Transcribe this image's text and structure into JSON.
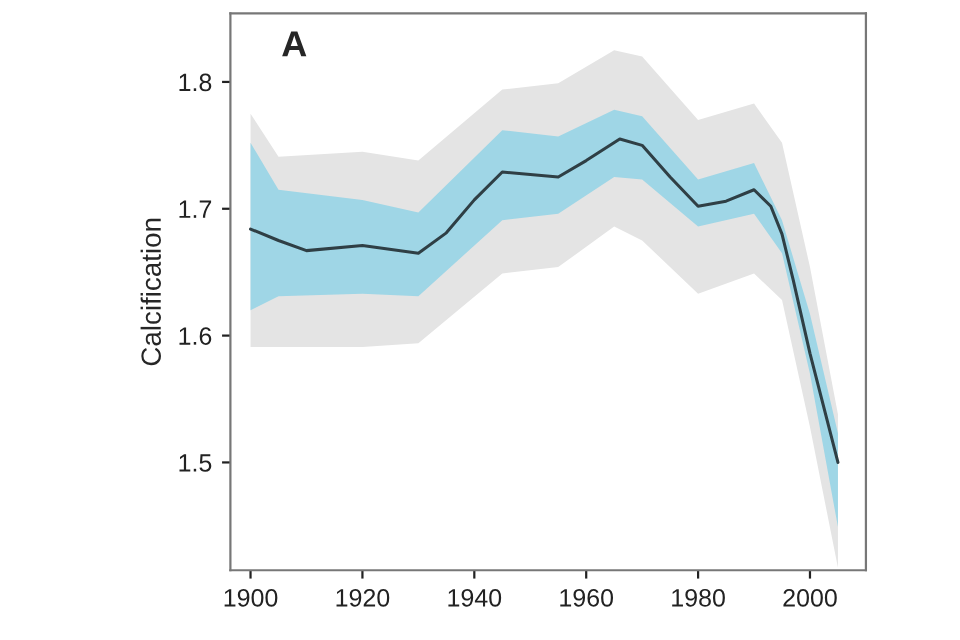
{
  "chart_data": {
    "type": "line",
    "title": "A",
    "ylabel": "Calcification",
    "x": [
      1900,
      1905,
      1910,
      1920,
      1930,
      1935,
      1940,
      1945,
      1950,
      1955,
      1960,
      1966,
      1970,
      1975,
      1980,
      1985,
      1990,
      1993,
      1995,
      1997,
      2000,
      2005
    ],
    "series": [
      {
        "type": "area",
        "color": "#e4e4e4",
        "x": [
          1900,
          1905,
          1920,
          1930,
          1945,
          1955,
          1965,
          1970,
          1980,
          1990,
          1995,
          2000,
          2005
        ],
        "values": [
          null,
          null,
          null,
          null,
          null,
          null,
          null,
          null,
          null,
          null,
          null,
          null,
          null
        ],
        "lower": [
          1.591,
          1.591,
          1.591,
          1.594,
          1.649,
          1.654,
          1.686,
          1.675,
          1.633,
          1.649,
          1.628,
          1.528,
          1.417
        ],
        "upper": [
          1.775,
          1.741,
          1.745,
          1.738,
          1.794,
          1.799,
          1.825,
          1.82,
          1.77,
          1.783,
          1.752,
          1.654,
          1.538
        ]
      },
      {
        "type": "area",
        "color": "#9fd6e6",
        "x": [
          1900,
          1905,
          1920,
          1930,
          1945,
          1955,
          1965,
          1970,
          1980,
          1990,
          1995,
          2000,
          2005
        ],
        "values": [
          null,
          null,
          null,
          null,
          null,
          null,
          null,
          null,
          null,
          null,
          null,
          null,
          null
        ],
        "lower": [
          1.62,
          1.631,
          1.633,
          1.631,
          1.691,
          1.696,
          1.725,
          1.723,
          1.686,
          1.696,
          1.665,
          1.57,
          1.449
        ],
        "upper": [
          1.752,
          1.715,
          1.707,
          1.697,
          1.762,
          1.757,
          1.778,
          1.773,
          1.723,
          1.736,
          1.691,
          1.617,
          1.523
        ]
      },
      {
        "type": "line",
        "color": "#2f3f45",
        "values": [
          1.684,
          1.675,
          1.667,
          1.671,
          1.665,
          1.681,
          1.707,
          1.729,
          1.727,
          1.725,
          1.738,
          1.755,
          1.75,
          1.725,
          1.702,
          1.706,
          1.715,
          1.702,
          1.68,
          1.644,
          1.586,
          1.5
        ]
      }
    ],
    "xlim": [
      1896.4,
      2010
    ],
    "ylim": [
      1.415,
      1.854
    ],
    "xticks": [
      1900,
      1920,
      1940,
      1960,
      1980,
      2000
    ],
    "yticks": [
      1.5,
      1.6,
      1.7,
      1.8
    ],
    "grid": false,
    "legend": false
  }
}
